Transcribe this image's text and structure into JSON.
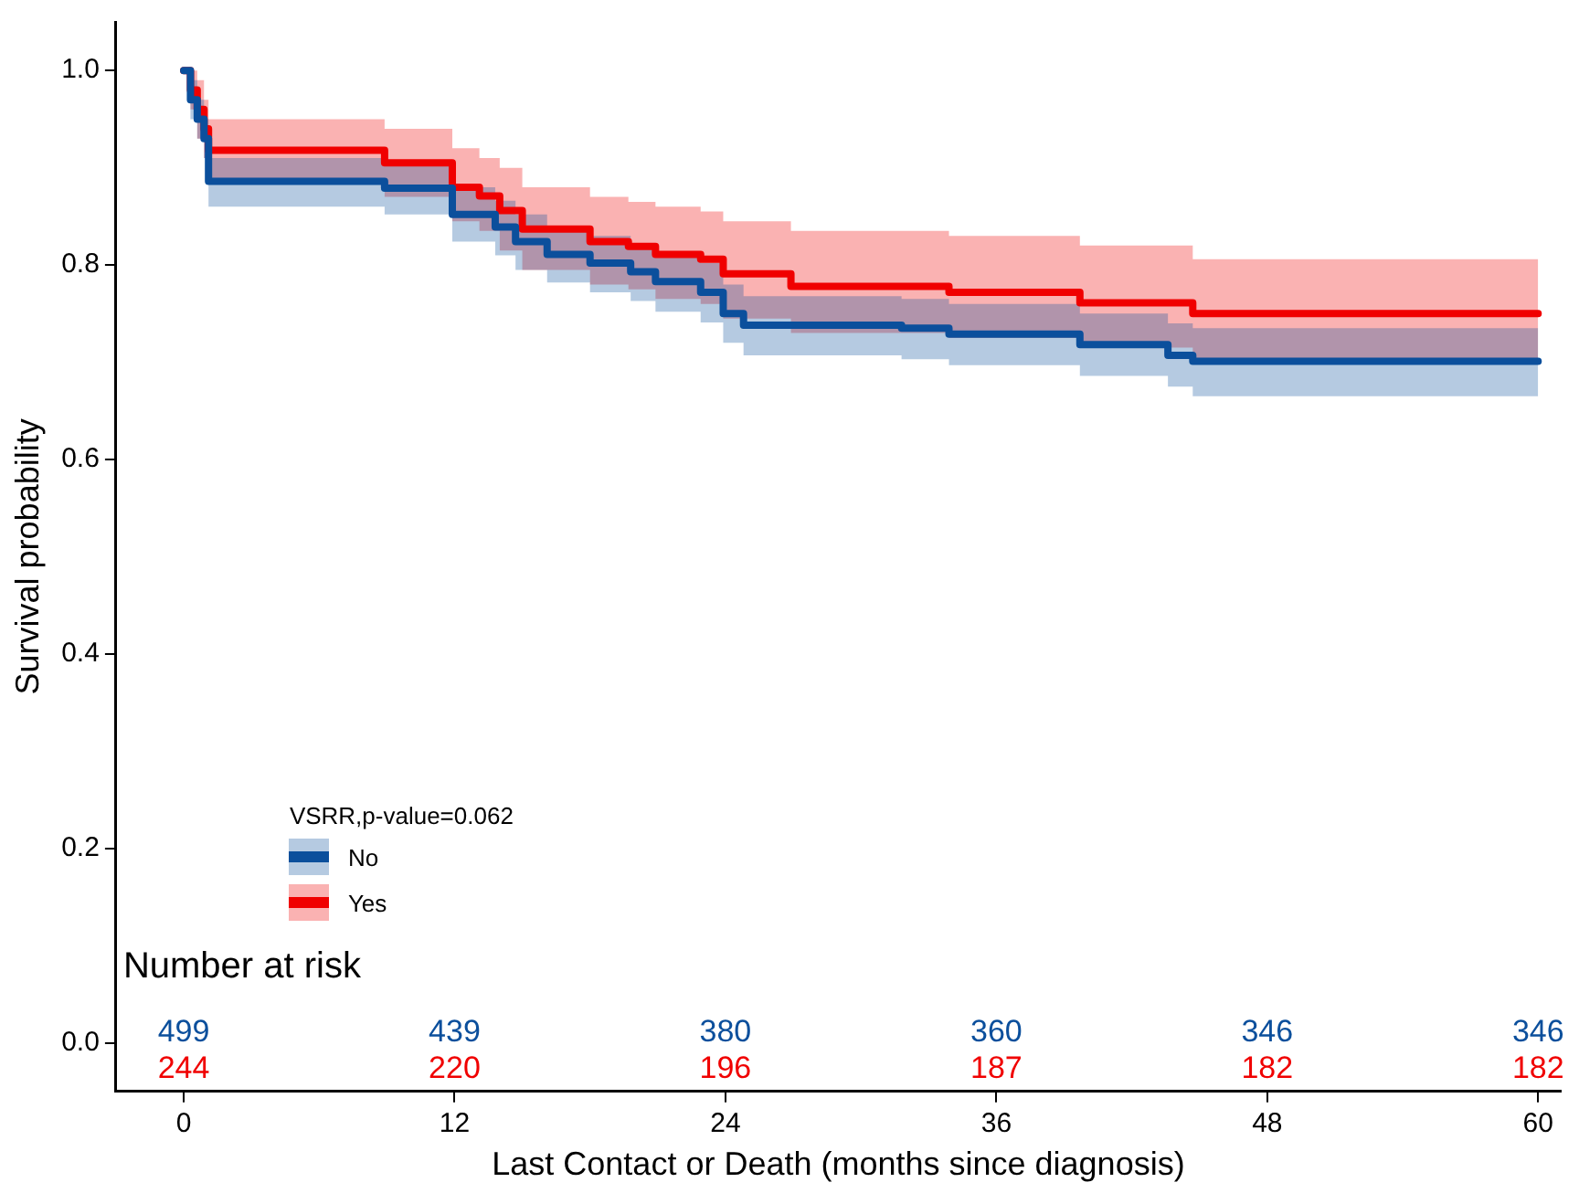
{
  "chart_data": {
    "type": "step",
    "xlabel": "Last Contact or Death (months since diagnosis)",
    "ylabel": "Survival probability",
    "legend_title": "VSRR,p-value=0.062",
    "legend": "bottom left",
    "grid": false,
    "xlim": [
      -3,
      61
    ],
    "xticks": [
      0,
      12,
      24,
      36,
      48,
      60
    ],
    "ylim": [
      -0.05,
      1.05
    ],
    "yticks": [
      {
        "value": 0,
        "label": "0.0"
      },
      {
        "value": 0.2,
        "label": "0.2"
      },
      {
        "value": 0.4,
        "label": "0.4"
      },
      {
        "value": 0.6,
        "label": "0.6"
      },
      {
        "value": 0.8,
        "label": "0.8"
      },
      {
        "value": 1,
        "label": "1.0"
      }
    ],
    "series": [
      {
        "name": "No",
        "color": "#0b4f9c",
        "x": [
          0,
          0.3,
          0.6,
          0.9,
          1.1,
          8.9,
          11.9,
          13.8,
          14.7,
          16.1,
          18.0,
          19.8,
          20.9,
          22.9,
          23.9,
          24.8,
          31.8,
          33.9,
          39.7,
          43.6,
          44.7,
          60
        ],
        "values": [
          1.0,
          0.97,
          0.95,
          0.93,
          0.886,
          0.879,
          0.852,
          0.839,
          0.824,
          0.811,
          0.802,
          0.793,
          0.783,
          0.772,
          0.75,
          0.738,
          0.735,
          0.729,
          0.718,
          0.707,
          0.701,
          0.701
        ],
        "upper": [
          1.0,
          0.99,
          0.97,
          0.95,
          0.91,
          0.905,
          0.88,
          0.866,
          0.852,
          0.84,
          0.83,
          0.822,
          0.812,
          0.802,
          0.78,
          0.768,
          0.765,
          0.76,
          0.75,
          0.74,
          0.735,
          0.735
        ],
        "lower": [
          1.0,
          0.95,
          0.93,
          0.91,
          0.86,
          0.852,
          0.824,
          0.81,
          0.795,
          0.782,
          0.772,
          0.763,
          0.752,
          0.741,
          0.72,
          0.707,
          0.703,
          0.697,
          0.686,
          0.675,
          0.665,
          0.665
        ]
      },
      {
        "name": "Yes",
        "color": "#f00000",
        "x": [
          0,
          0.3,
          0.6,
          0.9,
          1.1,
          8.9,
          11.9,
          13.1,
          14.0,
          15.0,
          18.0,
          19.7,
          20.9,
          22.9,
          23.9,
          26.9,
          33.9,
          39.7,
          44.7,
          60
        ],
        "values": [
          1.0,
          0.98,
          0.96,
          0.94,
          0.918,
          0.905,
          0.88,
          0.871,
          0.856,
          0.837,
          0.824,
          0.819,
          0.811,
          0.806,
          0.791,
          0.778,
          0.772,
          0.761,
          0.75,
          0.75
        ],
        "upper": [
          1.0,
          1.0,
          0.99,
          0.97,
          0.95,
          0.94,
          0.92,
          0.91,
          0.9,
          0.88,
          0.87,
          0.865,
          0.86,
          0.855,
          0.845,
          0.835,
          0.83,
          0.82,
          0.806,
          0.806
        ],
        "lower": [
          1.0,
          0.96,
          0.93,
          0.91,
          0.885,
          0.87,
          0.845,
          0.835,
          0.815,
          0.795,
          0.78,
          0.775,
          0.765,
          0.76,
          0.745,
          0.73,
          0.725,
          0.715,
          0.703,
          0.703
        ]
      }
    ],
    "annotations": [
      "Number at risk",
      "499",
      "244",
      "439",
      "220",
      "380",
      "196",
      "360",
      "187",
      "346",
      "182",
      "346",
      "182"
    ]
  }
}
